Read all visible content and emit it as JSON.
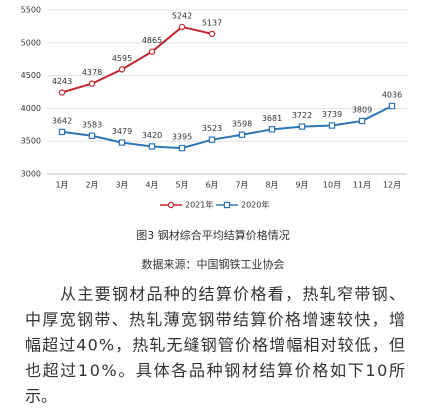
{
  "chart_data": {
    "type": "line",
    "categories": [
      "1月",
      "2月",
      "3月",
      "4月",
      "5月",
      "6月",
      "7月",
      "8月",
      "9月",
      "10月",
      "11月",
      "12月"
    ],
    "series": [
      {
        "name": "2021年",
        "color": "#c0262d",
        "marker": "circle",
        "values": [
          4243,
          4378,
          4595,
          4865,
          5242,
          5137,
          null,
          null,
          null,
          null,
          null,
          null
        ]
      },
      {
        "name": "2020年",
        "color": "#2e75b6",
        "marker": "square",
        "values": [
          3642,
          3583,
          3479,
          3420,
          3395,
          3523,
          3598,
          3681,
          3722,
          3739,
          3809,
          4036
        ]
      }
    ],
    "ylim": [
      3000,
      5500
    ],
    "yticks": [
      3000,
      3500,
      4000,
      4500,
      5000,
      5500
    ],
    "grid": true,
    "legend": "bottom"
  },
  "caption": "图3 钢材综合平均结算价格情况",
  "source": "数据来源：中国钢铁工业协会",
  "paragraph": [
    "从主要钢材品种的结算价格看，热轧窄带钢、",
    "中厚宽钢带、热轧薄宽钢带结算价格增速较快，增",
    "幅超过40%，热轧无缝钢管价格增幅相对较低，但",
    "也超过10%。具体各品种钢材结算价格如下10所",
    "示。"
  ]
}
